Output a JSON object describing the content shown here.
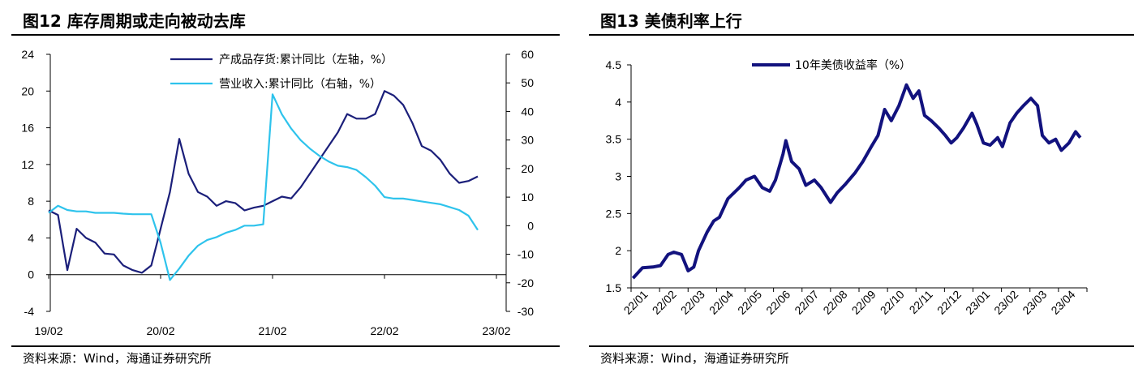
{
  "left": {
    "title": "图12 库存周期或走向被动去库",
    "source": "资料来源：Wind，海通证券研究所"
  },
  "right": {
    "title": "图13 美债利率上行",
    "source": "资料来源：Wind，海通证券研究所"
  },
  "chart_data": [
    {
      "type": "line",
      "dual_axis": true,
      "grid": false,
      "legend_position": "top-right",
      "x_tick_labels": [
        "19/02",
        "20/02",
        "21/02",
        "22/02",
        "23/02"
      ],
      "y_left": {
        "ylim": [
          -4,
          24
        ],
        "ticks": [
          -4,
          0,
          4,
          8,
          12,
          16,
          20,
          24
        ]
      },
      "y_right": {
        "ylim": [
          -30,
          60
        ],
        "ticks": [
          -30,
          -20,
          -10,
          0,
          10,
          20,
          30,
          40,
          50,
          60
        ]
      },
      "colors": {
        "inventory": "#1b1f7a",
        "revenue": "#2ec3ec"
      },
      "series": [
        {
          "name": "产成品存货:累计同比（左轴，%）",
          "axis": "left",
          "points": [
            [
              "19/02",
              7.0
            ],
            [
              "19/03",
              6.5
            ],
            [
              "19/04",
              0.5
            ],
            [
              "19/05",
              5.0
            ],
            [
              "19/06",
              4.0
            ],
            [
              "19/07",
              3.5
            ],
            [
              "19/08",
              2.3
            ],
            [
              "19/09",
              2.2
            ],
            [
              "19/10",
              1.0
            ],
            [
              "19/11",
              0.5
            ],
            [
              "19/12",
              0.2
            ],
            [
              "20/01",
              1.0
            ],
            [
              "20/02",
              5.0
            ],
            [
              "20/03",
              9.0
            ],
            [
              "20/04",
              14.8
            ],
            [
              "20/05",
              11.0
            ],
            [
              "20/06",
              9.0
            ],
            [
              "20/07",
              8.5
            ],
            [
              "20/08",
              7.5
            ],
            [
              "20/09",
              8.0
            ],
            [
              "20/10",
              7.8
            ],
            [
              "20/11",
              7.0
            ],
            [
              "20/12",
              7.3
            ],
            [
              "21/01",
              7.5
            ],
            [
              "21/02",
              8.0
            ],
            [
              "21/03",
              8.5
            ],
            [
              "21/04",
              8.3
            ],
            [
              "21/05",
              9.5
            ],
            [
              "21/06",
              11.0
            ],
            [
              "21/07",
              12.5
            ],
            [
              "21/08",
              14.0
            ],
            [
              "21/09",
              15.5
            ],
            [
              "21/10",
              17.5
            ],
            [
              "21/11",
              17.0
            ],
            [
              "21/12",
              17.0
            ],
            [
              "22/01",
              17.5
            ],
            [
              "22/02",
              20.0
            ],
            [
              "22/03",
              19.5
            ],
            [
              "22/04",
              18.5
            ],
            [
              "22/05",
              16.5
            ],
            [
              "22/06",
              14.0
            ],
            [
              "22/07",
              13.5
            ],
            [
              "22/08",
              12.5
            ],
            [
              "22/09",
              11.0
            ],
            [
              "22/10",
              10.0
            ],
            [
              "22/11",
              10.2
            ],
            [
              "22/12",
              10.7
            ]
          ]
        },
        {
          "name": "营业收入:累计同比（右轴，%）",
          "axis": "right",
          "points": [
            [
              "19/02",
              4.5
            ],
            [
              "19/03",
              7.0
            ],
            [
              "19/04",
              5.5
            ],
            [
              "19/05",
              5.0
            ],
            [
              "19/06",
              5.0
            ],
            [
              "19/07",
              4.5
            ],
            [
              "19/08",
              4.5
            ],
            [
              "19/09",
              4.5
            ],
            [
              "19/10",
              4.2
            ],
            [
              "19/11",
              4.0
            ],
            [
              "19/12",
              4.0
            ],
            [
              "20/01",
              4.0
            ],
            [
              "20/02",
              -6.0
            ],
            [
              "20/03",
              -19.0
            ],
            [
              "20/04",
              -15.0
            ],
            [
              "20/05",
              -10.5
            ],
            [
              "20/06",
              -7.0
            ],
            [
              "20/07",
              -5.0
            ],
            [
              "20/08",
              -4.0
            ],
            [
              "20/09",
              -2.5
            ],
            [
              "20/10",
              -1.5
            ],
            [
              "20/11",
              0.0
            ],
            [
              "20/12",
              0.0
            ],
            [
              "21/01",
              0.5
            ],
            [
              "21/02",
              46.0
            ],
            [
              "21/03",
              39.0
            ],
            [
              "21/04",
              34.0
            ],
            [
              "21/05",
              30.0
            ],
            [
              "21/06",
              27.0
            ],
            [
              "21/07",
              24.5
            ],
            [
              "21/08",
              22.5
            ],
            [
              "21/09",
              21.0
            ],
            [
              "21/10",
              20.5
            ],
            [
              "21/11",
              19.5
            ],
            [
              "21/12",
              17.0
            ],
            [
              "22/01",
              14.0
            ],
            [
              "22/02",
              10.0
            ],
            [
              "22/03",
              9.5
            ],
            [
              "22/04",
              9.5
            ],
            [
              "22/05",
              9.0
            ],
            [
              "22/06",
              8.5
            ],
            [
              "22/07",
              8.0
            ],
            [
              "22/08",
              7.5
            ],
            [
              "22/09",
              6.5
            ],
            [
              "22/10",
              5.5
            ],
            [
              "22/11",
              3.5
            ],
            [
              "22/12",
              -1.5
            ]
          ]
        }
      ]
    },
    {
      "type": "line",
      "grid": false,
      "legend_position": "top-center",
      "ylim": [
        1.5,
        4.5
      ],
      "y_ticks": [
        1.5,
        2,
        2.5,
        3,
        3.5,
        4,
        4.5
      ],
      "x_tick_labels": [
        "22/01",
        "22/02",
        "22/03",
        "22/04",
        "22/05",
        "22/06",
        "22/07",
        "22/08",
        "22/09",
        "22/10",
        "22/11",
        "22/12",
        "23/01",
        "23/02",
        "23/03",
        "23/04"
      ],
      "colors": {
        "yield": "#12127e"
      },
      "series": [
        {
          "name": "10年美债收益率（%）",
          "points": [
            [
              "22/01/03",
              1.63
            ],
            [
              "22/01/13",
              1.77
            ],
            [
              "22/01/24",
              1.78
            ],
            [
              "22/02/02",
              1.8
            ],
            [
              "22/02/10",
              1.95
            ],
            [
              "22/02/16",
              1.98
            ],
            [
              "22/02/24",
              1.95
            ],
            [
              "22/03/01",
              1.73
            ],
            [
              "22/03/07",
              1.78
            ],
            [
              "22/03/12",
              2.0
            ],
            [
              "22/03/21",
              2.25
            ],
            [
              "22/03/28",
              2.4
            ],
            [
              "22/04/04",
              2.45
            ],
            [
              "22/04/13",
              2.7
            ],
            [
              "22/04/25",
              2.85
            ],
            [
              "22/05/02",
              2.95
            ],
            [
              "22/05/11",
              3.0
            ],
            [
              "22/05/19",
              2.85
            ],
            [
              "22/05/27",
              2.8
            ],
            [
              "22/06/03",
              2.95
            ],
            [
              "22/06/11",
              3.3
            ],
            [
              "22/06/14",
              3.48
            ],
            [
              "22/06/20",
              3.2
            ],
            [
              "22/06/28",
              3.1
            ],
            [
              "22/07/05",
              2.88
            ],
            [
              "22/07/14",
              2.95
            ],
            [
              "22/07/21",
              2.85
            ],
            [
              "22/07/31",
              2.65
            ],
            [
              "22/08/08",
              2.78
            ],
            [
              "22/08/17",
              2.9
            ],
            [
              "22/08/27",
              3.05
            ],
            [
              "22/09/05",
              3.2
            ],
            [
              "22/09/14",
              3.4
            ],
            [
              "22/09/21",
              3.55
            ],
            [
              "22/09/28",
              3.9
            ],
            [
              "22/10/05",
              3.75
            ],
            [
              "22/10/13",
              3.95
            ],
            [
              "22/10/21",
              4.23
            ],
            [
              "22/10/28",
              4.05
            ],
            [
              "22/11/04",
              4.15
            ],
            [
              "22/11/10",
              3.82
            ],
            [
              "22/11/17",
              3.75
            ],
            [
              "22/11/25",
              3.65
            ],
            [
              "22/12/02",
              3.55
            ],
            [
              "22/12/08",
              3.45
            ],
            [
              "22/12/14",
              3.52
            ],
            [
              "22/12/21",
              3.65
            ],
            [
              "22/12/30",
              3.85
            ],
            [
              "23/01/05",
              3.7
            ],
            [
              "23/01/12",
              3.45
            ],
            [
              "23/01/19",
              3.42
            ],
            [
              "23/01/27",
              3.52
            ],
            [
              "23/02/02",
              3.4
            ],
            [
              "23/02/10",
              3.72
            ],
            [
              "23/02/17",
              3.85
            ],
            [
              "23/02/24",
              3.95
            ],
            [
              "23/03/02",
              4.05
            ],
            [
              "23/03/09",
              3.95
            ],
            [
              "23/03/14",
              3.55
            ],
            [
              "23/03/21",
              3.45
            ],
            [
              "23/03/28",
              3.5
            ],
            [
              "23/04/04",
              3.35
            ],
            [
              "23/04/12",
              3.45
            ],
            [
              "23/04/19",
              3.6
            ],
            [
              "23/04/24",
              3.52
            ]
          ]
        }
      ]
    }
  ]
}
